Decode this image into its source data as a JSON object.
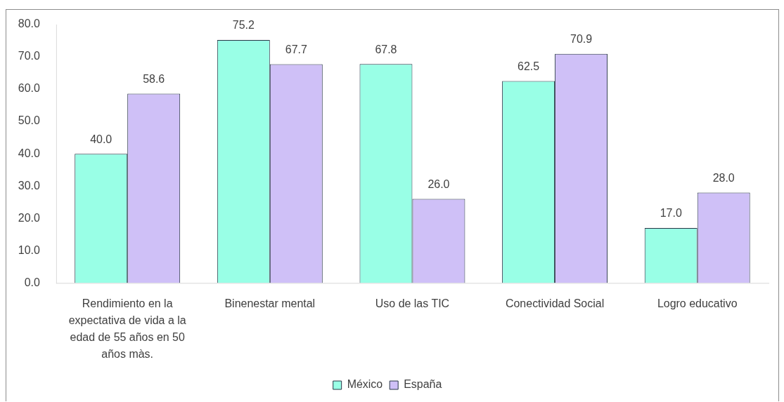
{
  "chart_data": {
    "type": "bar",
    "categories": [
      "Rendimiento en la expectativa de vida a la edad de 55 años en 50 años màs.",
      "Binenestar mental",
      "Uso de las TIC",
      "Conectividad Social",
      "Logro educativo"
    ],
    "series": [
      {
        "name": "México",
        "color": "#99ffe6",
        "values": [
          40.0,
          75.2,
          67.8,
          62.5,
          17.0
        ],
        "value_labels": [
          "40.0",
          "75.2",
          "67.8",
          "62.5",
          "17.0"
        ]
      },
      {
        "name": "España",
        "color": "#cfc0f7",
        "values": [
          58.6,
          67.7,
          26.0,
          70.9,
          28.0
        ],
        "value_labels": [
          "58.6",
          "67.7",
          "26.0",
          "70.9",
          "28.0"
        ]
      }
    ],
    "ylim": [
      0,
      80
    ],
    "yticks": [
      {
        "value": 0,
        "label": "0.0"
      },
      {
        "value": 10,
        "label": "10.0"
      },
      {
        "value": 20,
        "label": "20.0"
      },
      {
        "value": 30,
        "label": "30.0"
      },
      {
        "value": 40,
        "label": "40.0"
      },
      {
        "value": 50,
        "label": "50.0"
      },
      {
        "value": 60,
        "label": "60.0"
      },
      {
        "value": 70,
        "label": "70.0"
      },
      {
        "value": 80,
        "label": "80.0"
      }
    ],
    "legend": "bottom"
  }
}
